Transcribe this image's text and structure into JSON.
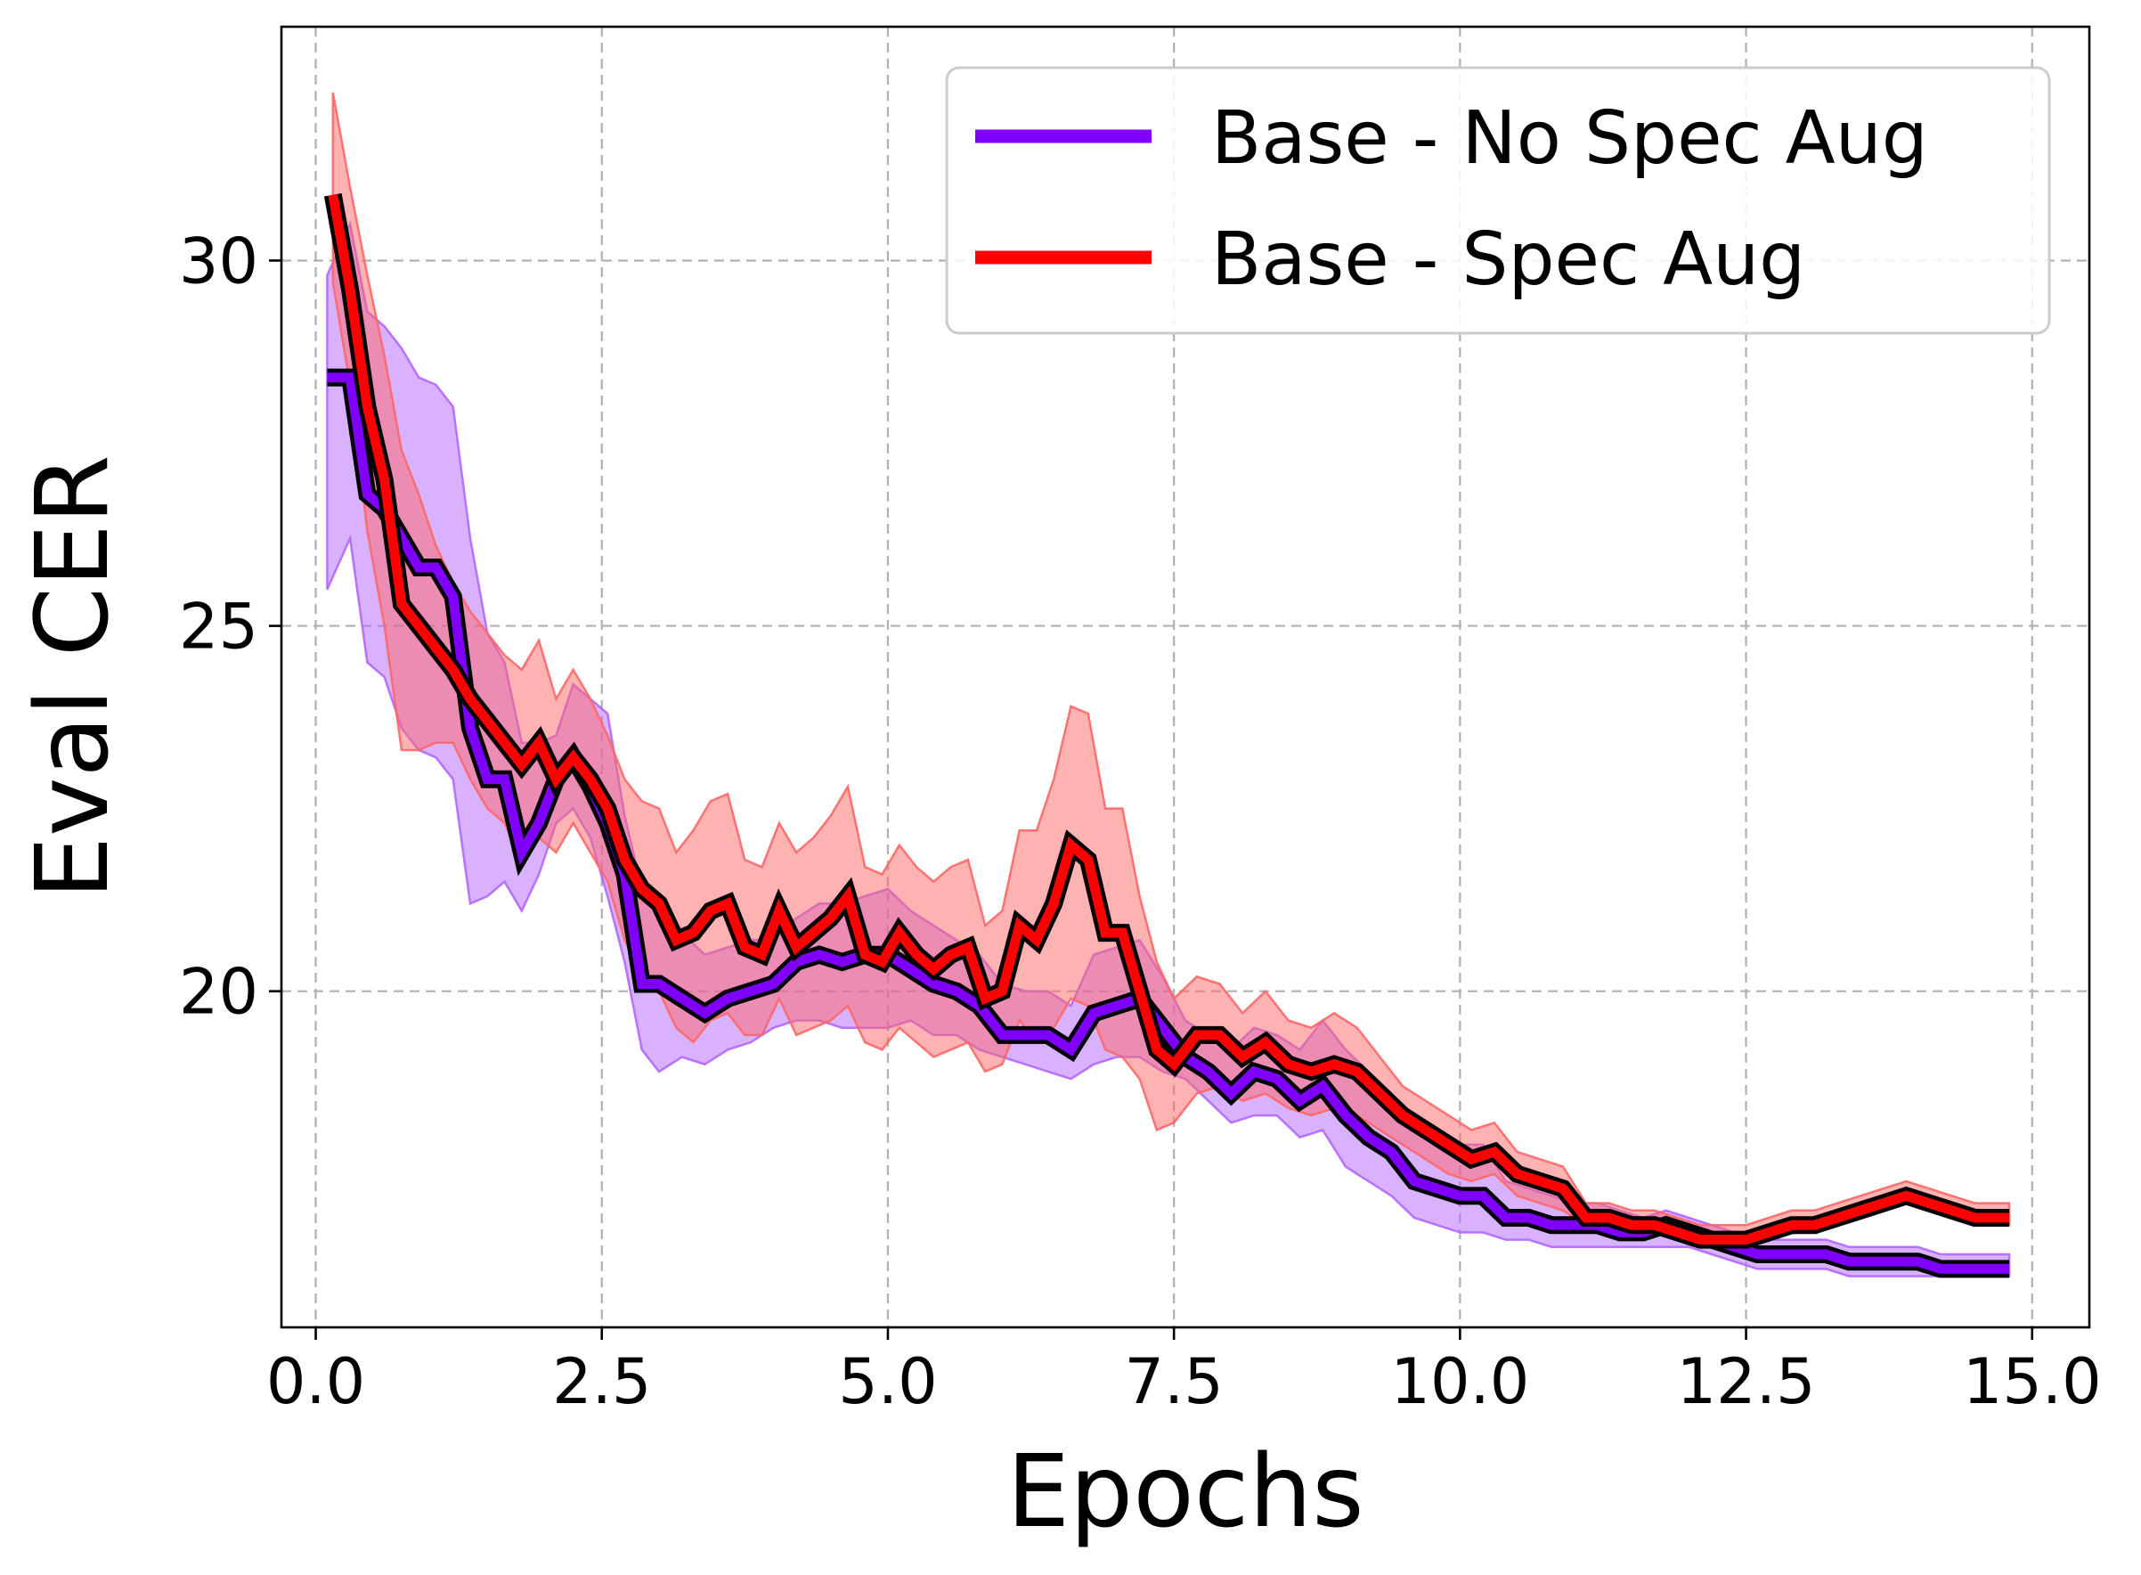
{
  "chart_data": {
    "type": "line",
    "xlabel": "Epochs",
    "ylabel": "Eval CER",
    "xlim": [
      -0.3,
      15.5
    ],
    "ylim": [
      15.4,
      33.2
    ],
    "xticks": [
      0.0,
      2.5,
      5.0,
      7.5,
      10.0,
      12.5,
      15.0
    ],
    "xtick_labels": [
      "0.0",
      "2.5",
      "5.0",
      "7.5",
      "10.0",
      "12.5",
      "15.0"
    ],
    "yticks": [
      20,
      25,
      30
    ],
    "ytick_labels": [
      "20",
      "25",
      "30"
    ],
    "grid": true,
    "legend_position": "top-right",
    "series": [
      {
        "name": "Base - No Spec Aug",
        "color": "#7f00ff",
        "band_color": "#b266ff",
        "x": [
          0.1,
          0.3,
          0.45,
          0.6,
          0.75,
          0.9,
          1.05,
          1.2,
          1.35,
          1.5,
          1.65,
          1.8,
          1.95,
          2.1,
          2.25,
          2.4,
          2.55,
          2.7,
          2.85,
          3.0,
          3.2,
          3.4,
          3.6,
          3.8,
          4.0,
          4.2,
          4.4,
          4.6,
          4.8,
          5.0,
          5.2,
          5.4,
          5.6,
          5.8,
          6.0,
          6.2,
          6.4,
          6.6,
          6.8,
          7.0,
          7.2,
          7.4,
          7.6,
          7.8,
          8.0,
          8.2,
          8.4,
          8.6,
          8.8,
          9.0,
          9.2,
          9.4,
          9.6,
          9.8,
          10.0,
          10.2,
          10.4,
          10.6,
          10.8,
          11.0,
          11.2,
          11.4,
          11.6,
          11.8,
          12.0,
          12.2,
          12.4,
          12.6,
          12.8,
          13.0,
          13.2,
          13.4,
          13.6,
          13.8,
          14.0,
          14.2,
          14.4,
          14.6,
          14.8
        ],
        "mean": [
          28.4,
          28.4,
          26.8,
          26.6,
          26.2,
          25.8,
          25.8,
          25.4,
          23.6,
          22.9,
          22.9,
          21.9,
          22.3,
          22.9,
          23.2,
          22.8,
          22.3,
          21.6,
          20.1,
          20.1,
          19.9,
          19.7,
          19.9,
          20.0,
          20.1,
          20.4,
          20.5,
          20.4,
          20.5,
          20.5,
          20.3,
          20.1,
          20.0,
          19.8,
          19.4,
          19.4,
          19.4,
          19.2,
          19.7,
          19.8,
          19.9,
          19.5,
          19.1,
          18.9,
          18.6,
          18.9,
          18.8,
          18.5,
          18.7,
          18.3,
          18.0,
          17.8,
          17.4,
          17.3,
          17.2,
          17.2,
          16.9,
          16.9,
          16.8,
          16.8,
          16.8,
          16.7,
          16.7,
          16.8,
          16.7,
          16.6,
          16.5,
          16.4,
          16.4,
          16.4,
          16.4,
          16.3,
          16.3,
          16.3,
          16.3,
          16.2,
          16.2,
          16.2,
          16.2
        ],
        "lower": [
          25.5,
          26.2,
          24.5,
          24.3,
          23.6,
          23.3,
          23.2,
          22.9,
          21.2,
          21.3,
          21.5,
          21.1,
          21.6,
          22.3,
          22.5,
          22.1,
          21.3,
          20.4,
          19.2,
          18.9,
          19.1,
          19.0,
          19.2,
          19.3,
          19.5,
          19.6,
          19.6,
          19.5,
          19.5,
          19.5,
          19.6,
          19.4,
          19.4,
          19.2,
          19.1,
          19.0,
          18.9,
          18.8,
          19.0,
          19.1,
          19.1,
          18.9,
          18.8,
          18.5,
          18.2,
          18.3,
          18.3,
          18.0,
          18.1,
          17.6,
          17.4,
          17.2,
          16.9,
          16.8,
          16.7,
          16.7,
          16.6,
          16.6,
          16.5,
          16.5,
          16.5,
          16.5,
          16.5,
          16.5,
          16.5,
          16.4,
          16.3,
          16.2,
          16.2,
          16.2,
          16.2,
          16.1,
          16.1,
          16.1,
          16.1,
          16.1,
          16.1,
          16.1,
          16.1
        ],
        "upper": [
          29.8,
          30.5,
          29.3,
          29.1,
          28.8,
          28.4,
          28.3,
          28.0,
          26.2,
          24.9,
          24.5,
          23.4,
          23.4,
          23.5,
          24.2,
          24.0,
          23.8,
          22.4,
          21.4,
          21.1,
          20.8,
          20.5,
          20.6,
          20.7,
          20.7,
          21.0,
          21.2,
          21.2,
          21.3,
          21.4,
          21.1,
          20.9,
          20.7,
          20.5,
          20.1,
          20.0,
          20.0,
          19.8,
          20.5,
          20.6,
          20.7,
          20.2,
          19.6,
          19.4,
          19.2,
          19.5,
          19.4,
          19.2,
          19.6,
          19.2,
          18.9,
          18.6,
          18.2,
          18.0,
          17.9,
          17.9,
          17.4,
          17.3,
          17.2,
          17.1,
          17.1,
          17.0,
          16.9,
          17.0,
          16.9,
          16.8,
          16.7,
          16.6,
          16.6,
          16.6,
          16.6,
          16.5,
          16.5,
          16.5,
          16.5,
          16.4,
          16.4,
          16.4,
          16.4
        ]
      },
      {
        "name": "Base - Spec Aug",
        "color": "#ff0000",
        "band_color": "#ff6666",
        "x": [
          0.15,
          0.3,
          0.45,
          0.6,
          0.75,
          0.9,
          1.05,
          1.2,
          1.35,
          1.5,
          1.65,
          1.8,
          1.95,
          2.1,
          2.25,
          2.4,
          2.55,
          2.7,
          2.85,
          3.0,
          3.15,
          3.3,
          3.45,
          3.6,
          3.75,
          3.9,
          4.05,
          4.2,
          4.35,
          4.5,
          4.65,
          4.8,
          4.95,
          5.1,
          5.25,
          5.4,
          5.55,
          5.7,
          5.85,
          6.0,
          6.15,
          6.3,
          6.45,
          6.6,
          6.75,
          6.9,
          7.05,
          7.2,
          7.35,
          7.5,
          7.7,
          7.9,
          8.1,
          8.3,
          8.5,
          8.7,
          8.9,
          9.1,
          9.3,
          9.5,
          9.7,
          9.9,
          10.1,
          10.3,
          10.5,
          10.7,
          10.9,
          11.1,
          11.3,
          11.5,
          11.7,
          11.9,
          12.1,
          12.3,
          12.5,
          12.7,
          12.9,
          13.1,
          13.3,
          13.5,
          13.7,
          13.9,
          14.1,
          14.3,
          14.5,
          14.6,
          14.8
        ],
        "mean": [
          30.9,
          29.6,
          28.0,
          27.0,
          25.3,
          25.0,
          24.7,
          24.4,
          24.0,
          23.7,
          23.4,
          23.1,
          23.4,
          22.9,
          23.2,
          22.9,
          22.5,
          21.8,
          21.4,
          21.2,
          20.7,
          20.8,
          21.1,
          21.2,
          20.6,
          20.5,
          21.1,
          20.6,
          20.8,
          21.0,
          21.3,
          20.5,
          20.4,
          20.8,
          20.5,
          20.3,
          20.5,
          20.6,
          19.9,
          20.0,
          20.9,
          20.7,
          21.2,
          22.0,
          21.8,
          20.8,
          20.8,
          20.0,
          19.2,
          19.0,
          19.4,
          19.4,
          19.1,
          19.3,
          19.0,
          18.9,
          19.0,
          18.9,
          18.6,
          18.3,
          18.1,
          17.9,
          17.7,
          17.8,
          17.5,
          17.4,
          17.3,
          16.9,
          16.9,
          16.8,
          16.8,
          16.7,
          16.6,
          16.6,
          16.6,
          16.7,
          16.8,
          16.8,
          16.9,
          17.0,
          17.1,
          17.2,
          17.1,
          17.0,
          16.9,
          16.9,
          16.9
        ],
        "lower": [
          29.7,
          28.3,
          26.3,
          25.0,
          23.3,
          23.3,
          23.4,
          23.4,
          22.9,
          22.5,
          22.3,
          21.8,
          22.1,
          21.9,
          22.3,
          21.9,
          21.5,
          20.7,
          20.2,
          20.0,
          19.5,
          19.3,
          19.6,
          19.7,
          19.4,
          19.4,
          19.9,
          19.4,
          19.5,
          19.6,
          19.8,
          19.3,
          19.2,
          19.5,
          19.3,
          19.1,
          19.2,
          19.3,
          18.9,
          19.0,
          19.6,
          19.3,
          19.5,
          19.9,
          19.8,
          19.2,
          19.1,
          18.8,
          18.1,
          18.2,
          18.6,
          18.7,
          18.5,
          18.6,
          18.4,
          18.3,
          18.4,
          18.3,
          18.1,
          17.9,
          17.7,
          17.5,
          17.4,
          17.5,
          17.2,
          17.1,
          17.0,
          16.8,
          16.8,
          16.7,
          16.7,
          16.6,
          16.5,
          16.5,
          16.5,
          16.6,
          16.7,
          16.7,
          16.8,
          16.9,
          17.0,
          17.1,
          17.0,
          16.9,
          16.8,
          16.8,
          16.8
        ],
        "upper": [
          32.3,
          31.0,
          29.8,
          28.7,
          27.4,
          26.8,
          26.1,
          25.6,
          25.2,
          24.9,
          24.6,
          24.4,
          24.8,
          24.0,
          24.4,
          24.0,
          23.5,
          22.9,
          22.6,
          22.5,
          21.9,
          22.2,
          22.6,
          22.7,
          21.8,
          21.7,
          22.3,
          21.9,
          22.1,
          22.4,
          22.8,
          21.7,
          21.6,
          22.0,
          21.7,
          21.5,
          21.7,
          21.8,
          20.9,
          21.1,
          22.2,
          22.2,
          22.9,
          23.9,
          23.8,
          22.5,
          22.5,
          21.3,
          20.4,
          19.9,
          20.2,
          20.1,
          19.7,
          20.0,
          19.6,
          19.5,
          19.7,
          19.5,
          19.1,
          18.7,
          18.5,
          18.3,
          18.1,
          18.2,
          17.8,
          17.7,
          17.6,
          17.1,
          17.1,
          17.0,
          17.0,
          16.9,
          16.8,
          16.8,
          16.8,
          16.9,
          17.0,
          17.0,
          17.1,
          17.2,
          17.3,
          17.4,
          17.3,
          17.2,
          17.1,
          17.1,
          17.1
        ]
      }
    ]
  }
}
